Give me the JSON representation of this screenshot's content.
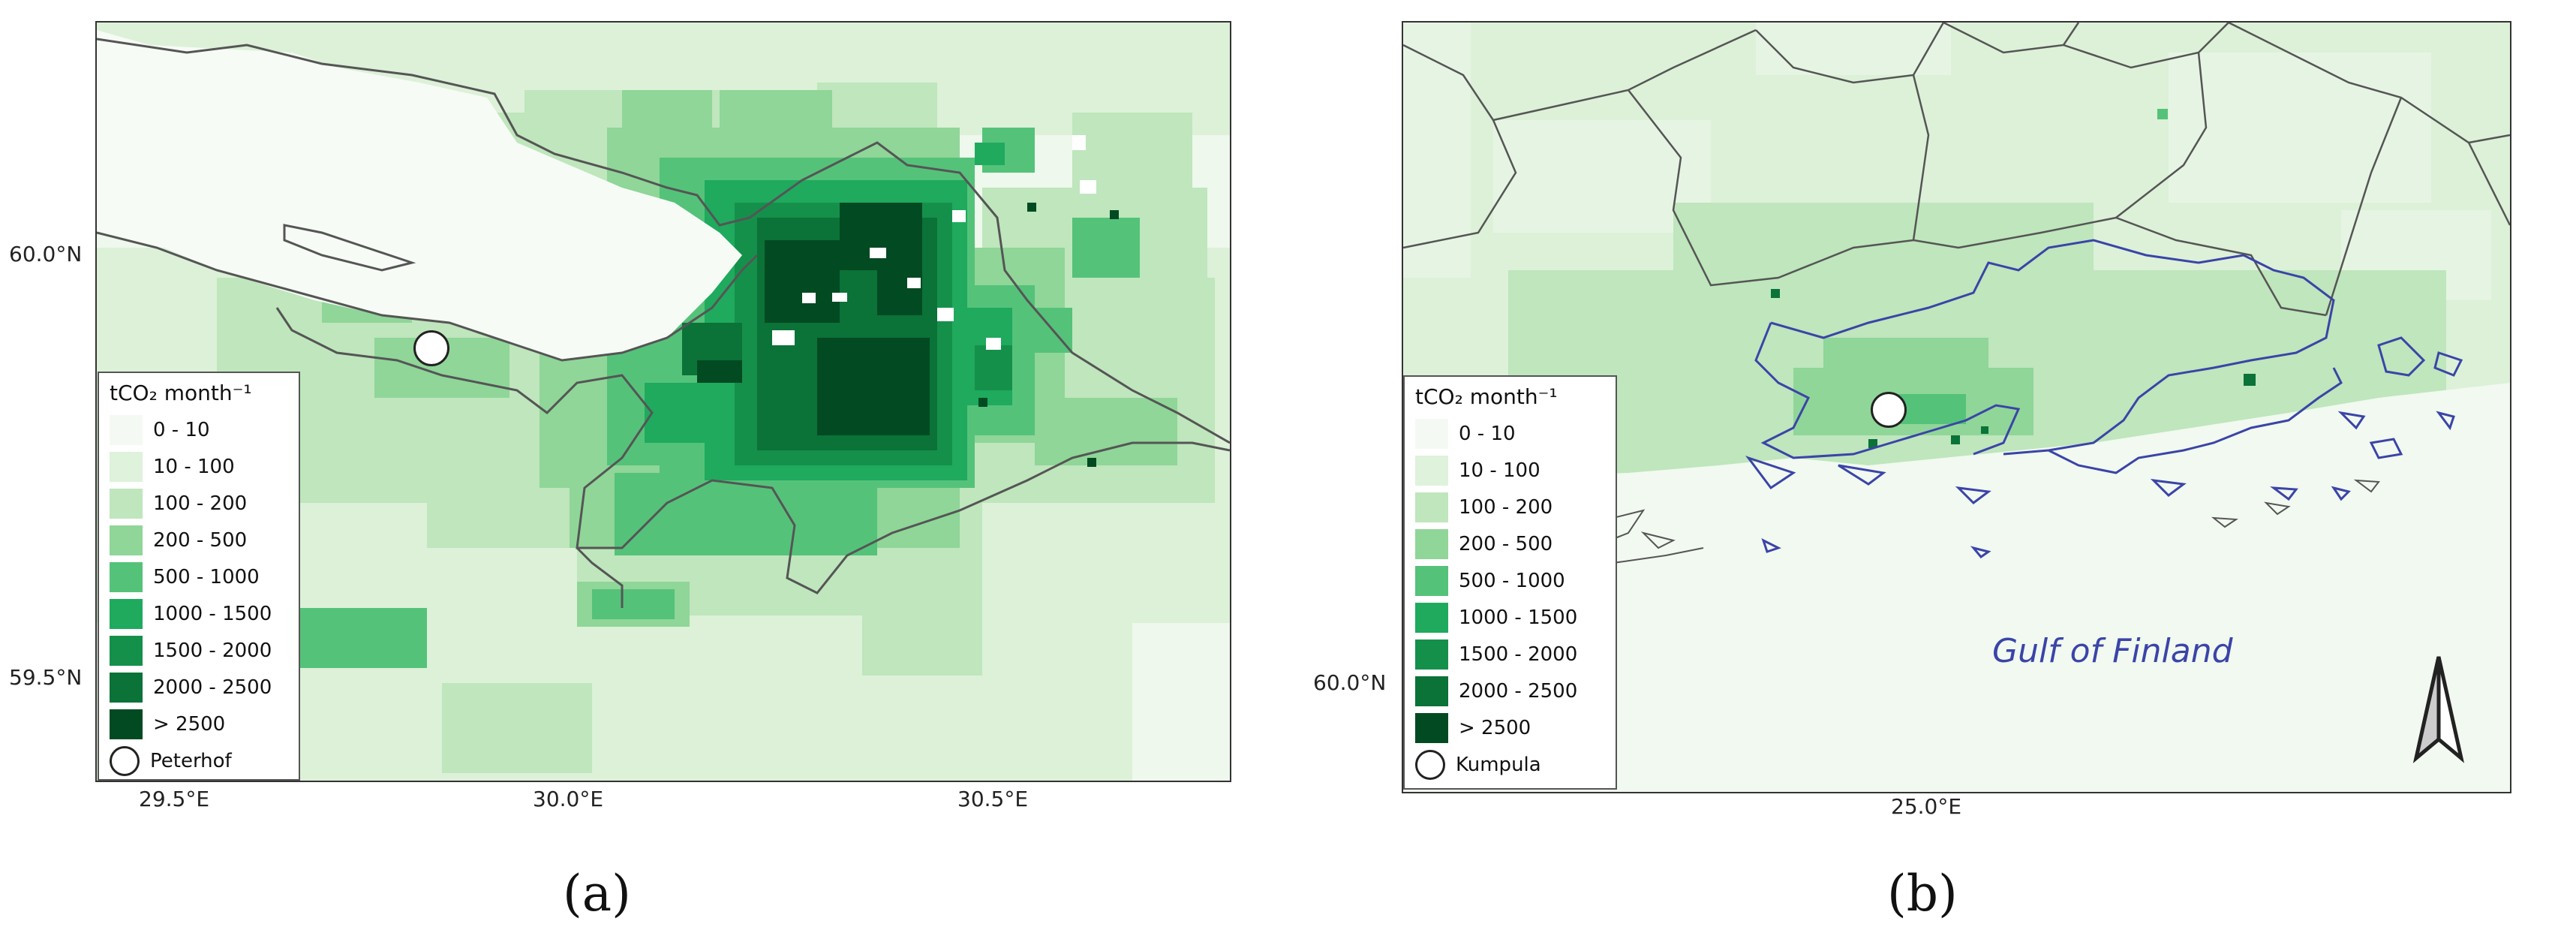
{
  "legend": {
    "title": "tCO₂ month⁻¹",
    "classes": [
      {
        "label": "0 - 10",
        "color": "#f4faf3"
      },
      {
        "label": "10 - 100",
        "color": "#dff2dc"
      },
      {
        "label": "100 - 200",
        "color": "#bfe6bc"
      },
      {
        "label": "200 - 500",
        "color": "#8fd698"
      },
      {
        "label": "500 - 1000",
        "color": "#55c27a"
      },
      {
        "label": "1000 - 1500",
        "color": "#1faa5e"
      },
      {
        "label": "1500 - 2000",
        "color": "#15904b"
      },
      {
        "label": "2000 - 2500",
        "color": "#0b7238"
      },
      {
        "label": "> 2500",
        "color": "#024a21"
      }
    ]
  },
  "panels": [
    {
      "label": "(a)",
      "station": "Peterhof",
      "lat_ticks": [
        "60.0°N",
        "59.5°N"
      ],
      "lon_ticks": [
        "29.5°E",
        "30.0°E",
        "30.5°E"
      ]
    },
    {
      "label": "(b)",
      "station": "Kumpula",
      "lat_ticks": [
        "60.0°N"
      ],
      "lon_ticks": [
        "25.0°E"
      ],
      "sea_label": "Gulf of Finland"
    }
  ]
}
